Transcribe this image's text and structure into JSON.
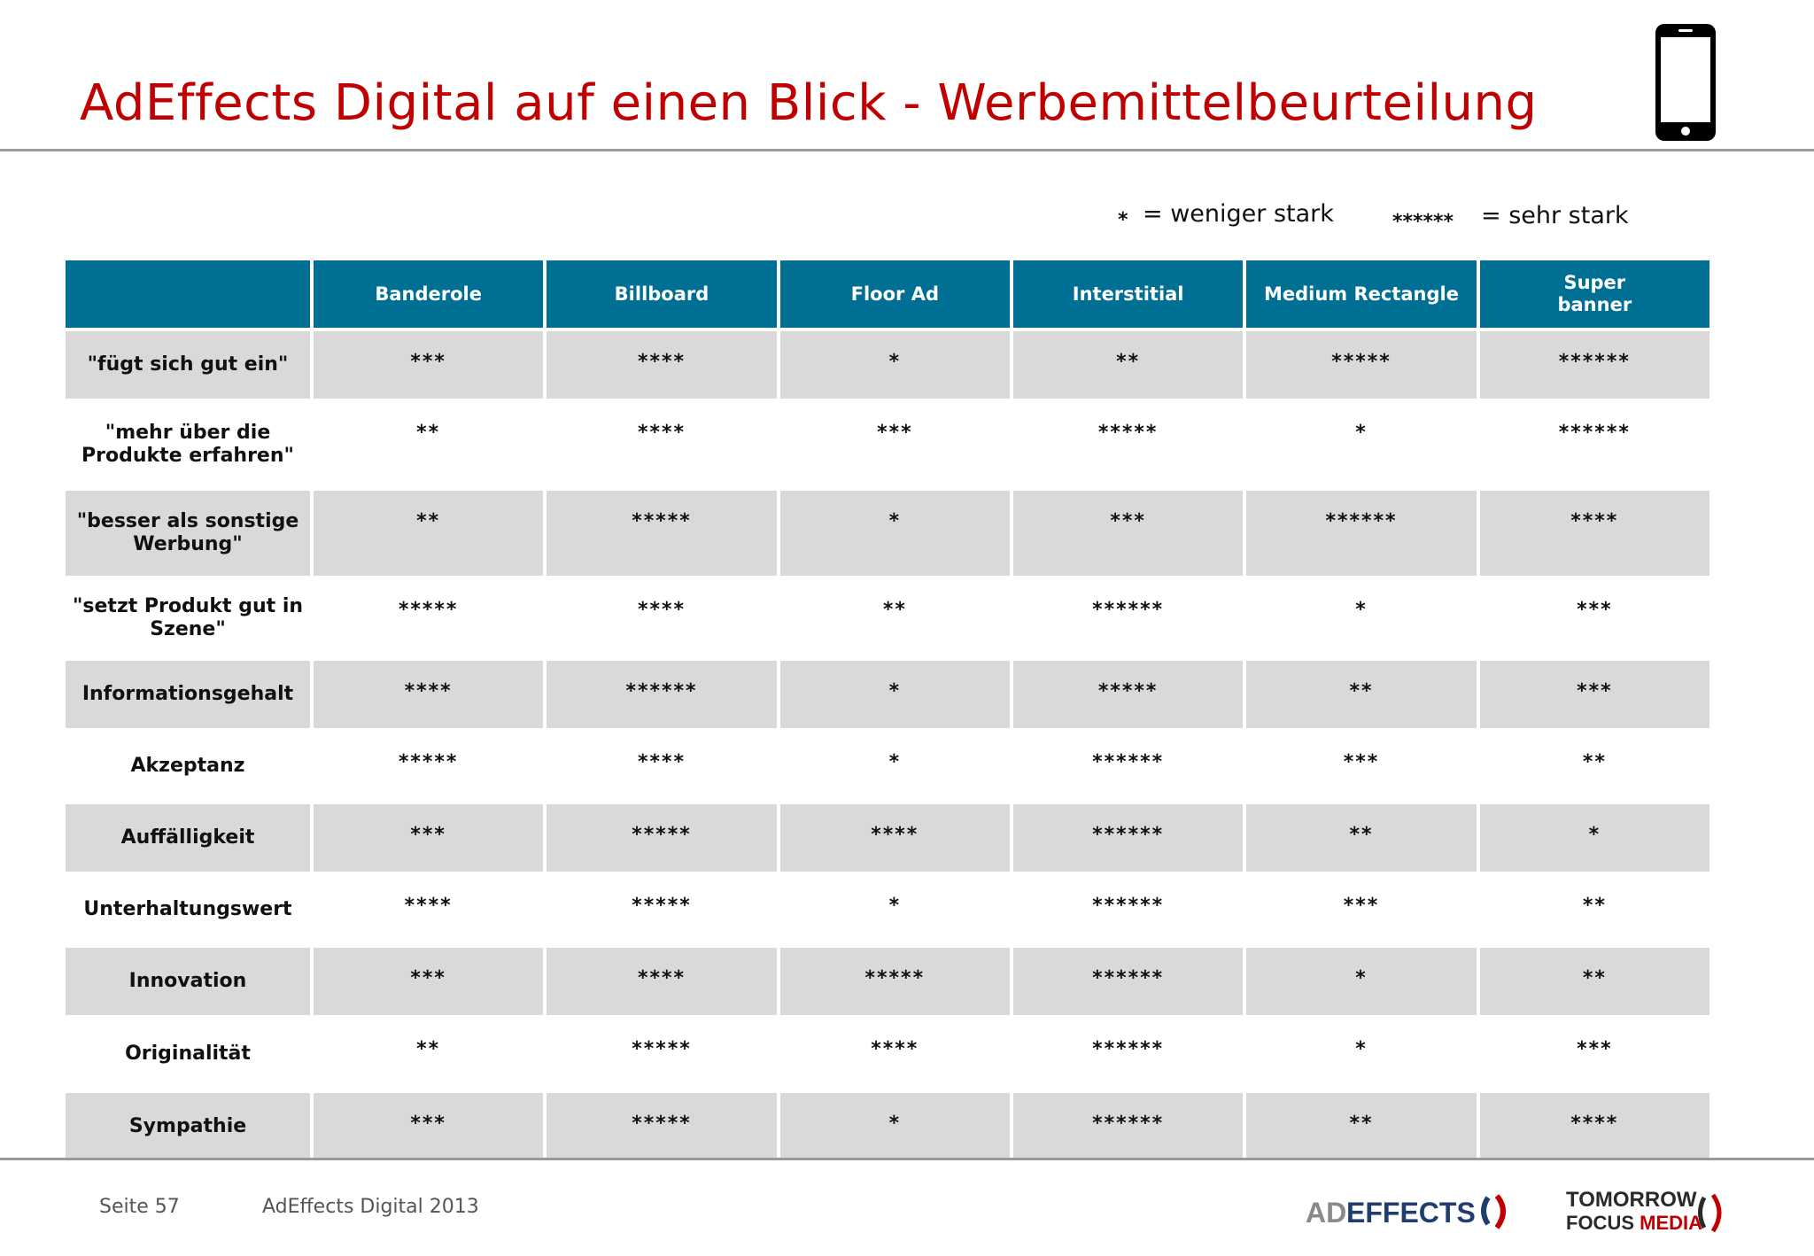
{
  "header": {
    "title": "AdEffects Digital auf einen Blick - Werbemittelbeurteilung"
  },
  "legend": {
    "low_symbol": "*",
    "low_text": "= weniger stark",
    "high_symbol": "******",
    "high_text": "= sehr stark"
  },
  "table": {
    "columns": [
      "Banderole",
      "Billboard",
      "Floor Ad",
      "Interstitial",
      "Medium Rectangle",
      "Super\nbanner"
    ],
    "rows": [
      {
        "label": "\"fügt sich gut ein\"",
        "values": [
          "***",
          "****",
          "*",
          "**",
          "*****",
          "******"
        ]
      },
      {
        "label": "\"mehr über die Produkte erfahren\"",
        "values": [
          "**",
          "****",
          "***",
          "*****",
          "*",
          "******"
        ]
      },
      {
        "label": "\"besser als sonstige Werbung\"",
        "values": [
          "**",
          "*****",
          "*",
          "***",
          "******",
          "****"
        ]
      },
      {
        "label": "\"setzt Produkt gut in Szene\"",
        "values": [
          "*****",
          "****",
          "**",
          "******",
          "*",
          "***"
        ]
      },
      {
        "label": "Informationsgehalt",
        "values": [
          "****",
          "******",
          "*",
          "*****",
          "**",
          "***"
        ]
      },
      {
        "label": "Akzeptanz",
        "values": [
          "*****",
          "****",
          "*",
          "******",
          "***",
          "**"
        ]
      },
      {
        "label": "Auffälligkeit",
        "values": [
          "***",
          "*****",
          "****",
          "******",
          "**",
          "*"
        ]
      },
      {
        "label": "Unterhaltungswert",
        "values": [
          "****",
          "*****",
          "*",
          "******",
          "***",
          "**"
        ]
      },
      {
        "label": "Innovation",
        "values": [
          "***",
          "****",
          "*****",
          "******",
          "*",
          "**"
        ]
      },
      {
        "label": "Originalität",
        "values": [
          "**",
          "*****",
          "****",
          "******",
          "*",
          "***"
        ]
      },
      {
        "label": "Sympathie",
        "values": [
          "***",
          "*****",
          "*",
          "******",
          "**",
          "****"
        ]
      }
    ]
  },
  "footer": {
    "page": "Seite 57",
    "report": "AdEffects Digital 2013",
    "logo_adeffects": "AD EFFECTS",
    "logo_tfm_line1": "TOMORROW",
    "logo_tfm_line2": "FOCUS MEDIA"
  },
  "colors": {
    "title": "#c00000",
    "header_bg": "#006f94",
    "row_shade": "#d9d9d9"
  }
}
